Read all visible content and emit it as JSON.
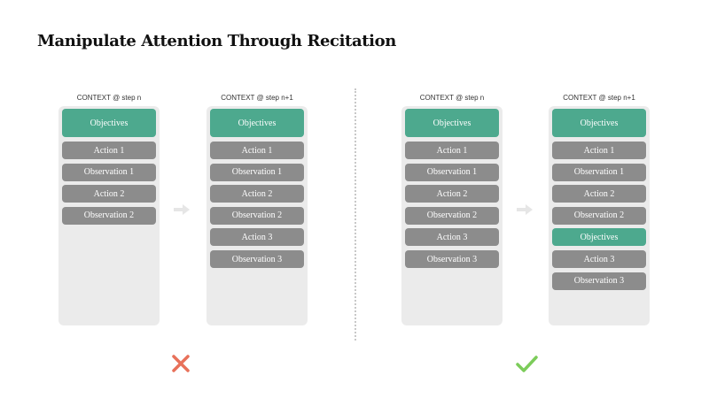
{
  "title": "Manipulate Attention Through Recitation",
  "colors": {
    "objective": "#4da98e",
    "item": "#8c8c8c",
    "panel": "#ebebeb",
    "cross": "#e8715a",
    "check": "#7ccc5a"
  },
  "panels": [
    {
      "label": "CONTEXT @ step n",
      "items": [
        "Objectives",
        "Action 1",
        "Observation 1",
        "Action 2",
        "Observation 2"
      ],
      "highlight": [
        0
      ]
    },
    {
      "label": "CONTEXT @ step n+1",
      "items": [
        "Objectives",
        "Action 1",
        "Observation 1",
        "Action 2",
        "Observation 2",
        "Action 3",
        "Observation 3"
      ],
      "highlight": [
        0
      ]
    },
    {
      "label": "CONTEXT @ step n",
      "items": [
        "Objectives",
        "Action 1",
        "Observation 1",
        "Action 2",
        "Observation 2",
        "Action 3",
        "Observation 3"
      ],
      "highlight": [
        0
      ]
    },
    {
      "label": "CONTEXT @ step n+1",
      "items": [
        "Objectives",
        "Action 1",
        "Observation 1",
        "Action 2",
        "Observation 2",
        "Objectives",
        "Action 3",
        "Observation 3"
      ],
      "highlight": [
        0,
        5
      ]
    }
  ],
  "verdicts": [
    {
      "icon": "cross-icon"
    },
    {
      "icon": "check-icon"
    }
  ]
}
